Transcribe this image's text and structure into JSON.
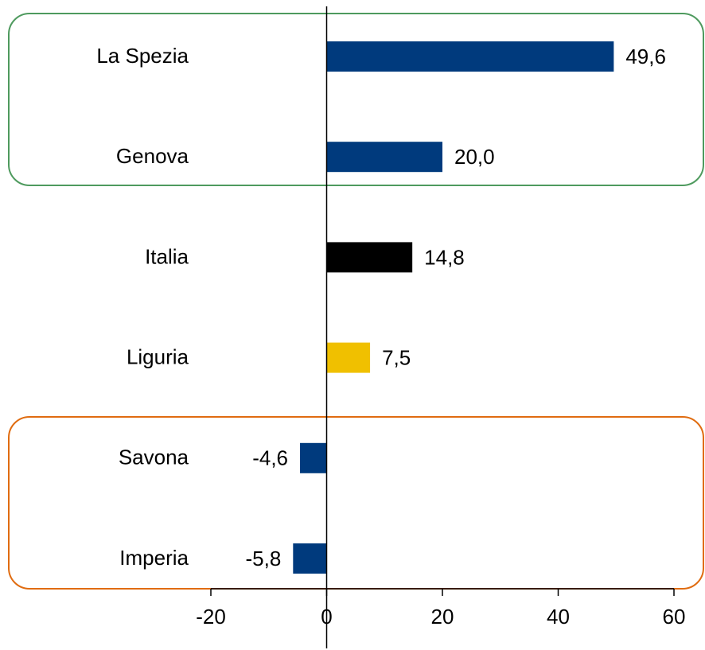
{
  "chart_data": {
    "type": "bar",
    "orientation": "horizontal",
    "categories": [
      "La Spezia",
      "Genova",
      "Italia",
      "Liguria",
      "Savona",
      "Imperia"
    ],
    "values": [
      49.6,
      20.0,
      14.8,
      7.5,
      -4.6,
      -5.8
    ],
    "value_labels": [
      "49,6",
      "20,0",
      "14,8",
      "7,5",
      "-4,6",
      "-5,8"
    ],
    "colors": [
      "#003a7d",
      "#003a7d",
      "#000000",
      "#f0c000",
      "#003a7d",
      "#003a7d"
    ],
    "xlim": [
      -20,
      60
    ],
    "xticks": [
      -20,
      0,
      20,
      40,
      60
    ],
    "grid": false
  }
}
